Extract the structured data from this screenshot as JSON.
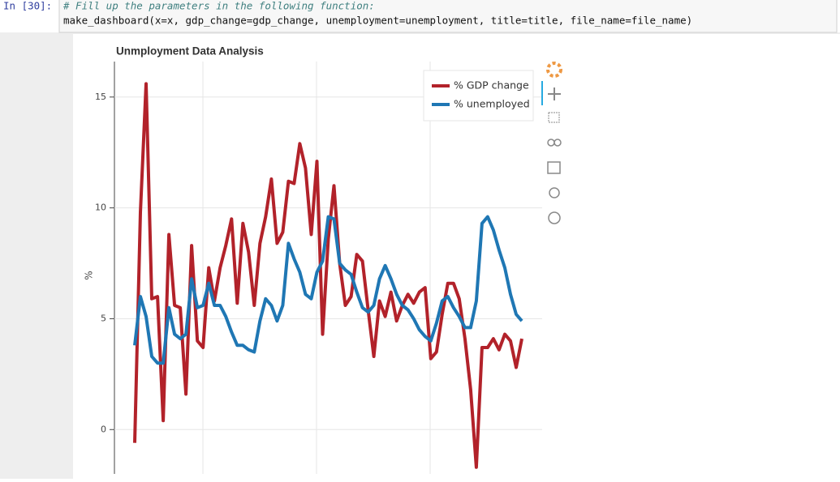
{
  "cell": {
    "prompt": "In [30]:",
    "comment": "# Fill up the parameters in the following function:",
    "code": "make_dashboard(x=x, gdp_change=gdp_change, unemployment=unemployment, title=title, file_name=file_name)"
  },
  "chart_data": {
    "type": "line",
    "title": "Unmployment Data Analysis",
    "y_label": "%",
    "categories": [
      null,
      null,
      null,
      null,
      null,
      null,
      null,
      null,
      null,
      null,
      null,
      null,
      null,
      null,
      null,
      null,
      null,
      null,
      null,
      null,
      null,
      null,
      null,
      null,
      null,
      null,
      null,
      null,
      null,
      null,
      null,
      null,
      null,
      null,
      null,
      null,
      null,
      null,
      null,
      null,
      null,
      null,
      null,
      null,
      null,
      null,
      null,
      null,
      null,
      null,
      null,
      null,
      null,
      null,
      null,
      null,
      null,
      null,
      null,
      null,
      null,
      null,
      null,
      null,
      null,
      null,
      null,
      null,
      null
    ],
    "series": [
      {
        "name": "% GDP change",
        "color": "#b2222a",
        "values": [
          -0.6,
          9.8,
          15.6,
          5.9,
          6.0,
          0.4,
          8.8,
          5.6,
          5.5,
          1.6,
          8.3,
          4.0,
          3.7,
          7.3,
          5.8,
          7.3,
          8.3,
          9.5,
          5.7,
          9.3,
          8.0,
          5.6,
          8.4,
          9.6,
          11.3,
          8.4,
          8.9,
          11.2,
          11.1,
          12.9,
          11.8,
          8.8,
          12.1,
          4.3,
          8.6,
          11.0,
          7.5,
          5.6,
          6.0,
          7.9,
          7.6,
          5.4,
          3.3,
          5.8,
          5.1,
          6.2,
          4.9,
          5.6,
          6.1,
          5.7,
          6.2,
          6.4,
          3.2,
          3.5,
          5.2,
          6.6,
          6.6,
          5.9,
          4.1,
          1.8,
          -1.7,
          3.7,
          3.7,
          4.1,
          3.6,
          4.3,
          4.0,
          2.8,
          4.1
        ]
      },
      {
        "name": "% unemployed",
        "color": "#1f77b4",
        "values": [
          3.8,
          6.0,
          5.1,
          3.3,
          3.0,
          3.0,
          5.5,
          4.3,
          4.1,
          4.3,
          6.8,
          5.5,
          5.6,
          6.6,
          5.6,
          5.6,
          5.1,
          4.4,
          3.8,
          3.8,
          3.6,
          3.5,
          4.9,
          5.9,
          5.6,
          4.9,
          5.6,
          8.4,
          7.7,
          7.1,
          6.1,
          5.9,
          7.1,
          7.6,
          9.6,
          9.5,
          7.5,
          7.2,
          7.0,
          6.2,
          5.5,
          5.3,
          5.6,
          6.8,
          7.4,
          6.8,
          6.1,
          5.6,
          5.4,
          5.0,
          4.5,
          4.2,
          4.0,
          4.8,
          5.8,
          6.0,
          5.5,
          5.1,
          4.6,
          4.6,
          5.8,
          9.3,
          9.6,
          9.0,
          8.1,
          7.3,
          6.1,
          5.2,
          4.9
        ]
      }
    ],
    "ylim": [
      -2,
      16.6
    ],
    "yticks": [
      0,
      5,
      10,
      15
    ],
    "grid": true,
    "legend": "top_right"
  }
}
